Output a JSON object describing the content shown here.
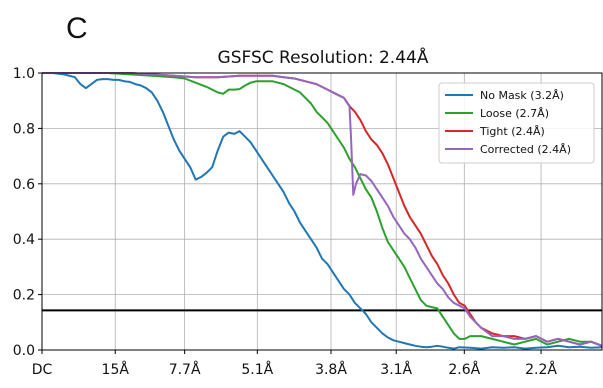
{
  "panel_label": "C",
  "chart_data": {
    "type": "line",
    "title": "GSFSC Resolution: 2.44Å",
    "xlabel": "",
    "ylabel": "",
    "x_tick_labels": [
      "DC",
      "15Å",
      "7.7Å",
      "5.1Å",
      "3.8Å",
      "3.1Å",
      "2.6Å",
      "2.2Å"
    ],
    "x_tick_values": [
      0.0,
      0.0667,
      0.1299,
      0.1961,
      0.2632,
      0.3226,
      0.3846,
      0.4545
    ],
    "xlim": [
      0.0,
      0.51
    ],
    "ylim": [
      0.0,
      1.0
    ],
    "y_ticks": [
      "0.0",
      "0.2",
      "0.4",
      "0.6",
      "0.8",
      "1.0"
    ],
    "y_tick_values": [
      0.0,
      0.2,
      0.4,
      0.6,
      0.8,
      1.0
    ],
    "grid": true,
    "legend_position": "top-right",
    "threshold": 0.143,
    "series": [
      {
        "name": "No Mask (3.2Å)",
        "color": "#1f77b4",
        "x": [
          0.0,
          0.01,
          0.02,
          0.03,
          0.035,
          0.04,
          0.045,
          0.05,
          0.055,
          0.06,
          0.065,
          0.07,
          0.075,
          0.08,
          0.085,
          0.09,
          0.095,
          0.1,
          0.105,
          0.11,
          0.115,
          0.12,
          0.125,
          0.13,
          0.135,
          0.14,
          0.145,
          0.15,
          0.155,
          0.16,
          0.165,
          0.17,
          0.175,
          0.18,
          0.185,
          0.19,
          0.195,
          0.2,
          0.205,
          0.21,
          0.215,
          0.22,
          0.225,
          0.23,
          0.235,
          0.24,
          0.245,
          0.25,
          0.255,
          0.26,
          0.265,
          0.27,
          0.275,
          0.28,
          0.285,
          0.29,
          0.295,
          0.3,
          0.305,
          0.31,
          0.315,
          0.32,
          0.325,
          0.33,
          0.335,
          0.34,
          0.345,
          0.35,
          0.355,
          0.36,
          0.365,
          0.37,
          0.375,
          0.38,
          0.39,
          0.4,
          0.41,
          0.42,
          0.43,
          0.44,
          0.45,
          0.46,
          0.47,
          0.48,
          0.49,
          0.5,
          0.51
        ],
        "y": [
          1.0,
          1.0,
          0.995,
          0.985,
          0.96,
          0.945,
          0.96,
          0.975,
          0.978,
          0.978,
          0.975,
          0.975,
          0.97,
          0.968,
          0.96,
          0.955,
          0.945,
          0.93,
          0.9,
          0.86,
          0.81,
          0.76,
          0.72,
          0.69,
          0.66,
          0.615,
          0.625,
          0.64,
          0.66,
          0.72,
          0.77,
          0.785,
          0.78,
          0.79,
          0.77,
          0.75,
          0.72,
          0.69,
          0.66,
          0.63,
          0.6,
          0.57,
          0.53,
          0.5,
          0.46,
          0.43,
          0.4,
          0.37,
          0.33,
          0.31,
          0.28,
          0.25,
          0.22,
          0.2,
          0.17,
          0.15,
          0.13,
          0.1,
          0.08,
          0.06,
          0.045,
          0.035,
          0.03,
          0.025,
          0.02,
          0.015,
          0.012,
          0.01,
          0.012,
          0.015,
          0.012,
          0.008,
          0.005,
          0.01,
          0.008,
          0.005,
          0.01,
          0.008,
          0.01,
          0.005,
          0.008,
          0.01,
          0.015,
          0.01,
          0.012,
          0.008,
          0.01
        ]
      },
      {
        "name": "Loose (2.7Å)",
        "color": "#2ca02c",
        "x": [
          0.0,
          0.02,
          0.04,
          0.06,
          0.08,
          0.1,
          0.12,
          0.13,
          0.14,
          0.15,
          0.155,
          0.16,
          0.165,
          0.17,
          0.175,
          0.18,
          0.185,
          0.19,
          0.195,
          0.2,
          0.205,
          0.21,
          0.215,
          0.22,
          0.225,
          0.23,
          0.235,
          0.24,
          0.245,
          0.25,
          0.255,
          0.26,
          0.265,
          0.27,
          0.275,
          0.28,
          0.285,
          0.29,
          0.295,
          0.3,
          0.305,
          0.31,
          0.315,
          0.32,
          0.325,
          0.33,
          0.335,
          0.34,
          0.345,
          0.35,
          0.355,
          0.36,
          0.365,
          0.37,
          0.375,
          0.38,
          0.385,
          0.39,
          0.395,
          0.4,
          0.41,
          0.42,
          0.43,
          0.44,
          0.45,
          0.46,
          0.47,
          0.48,
          0.49,
          0.5,
          0.51
        ],
        "y": [
          1.0,
          1.0,
          1.0,
          1.0,
          0.995,
          0.99,
          0.985,
          0.98,
          0.965,
          0.95,
          0.94,
          0.93,
          0.925,
          0.94,
          0.94,
          0.942,
          0.955,
          0.965,
          0.97,
          0.97,
          0.97,
          0.97,
          0.965,
          0.96,
          0.95,
          0.94,
          0.93,
          0.91,
          0.89,
          0.86,
          0.84,
          0.82,
          0.79,
          0.76,
          0.73,
          0.69,
          0.66,
          0.62,
          0.58,
          0.55,
          0.5,
          0.44,
          0.39,
          0.36,
          0.33,
          0.3,
          0.26,
          0.22,
          0.18,
          0.16,
          0.155,
          0.15,
          0.12,
          0.09,
          0.06,
          0.04,
          0.04,
          0.05,
          0.05,
          0.05,
          0.04,
          0.03,
          0.02,
          0.03,
          0.04,
          0.02,
          0.03,
          0.04,
          0.03,
          0.03,
          0.015
        ]
      },
      {
        "name": "Tight (2.4Å)",
        "color": "#d62728",
        "x": [
          0.0,
          0.02,
          0.04,
          0.06,
          0.08,
          0.1,
          0.12,
          0.14,
          0.16,
          0.18,
          0.2,
          0.21,
          0.22,
          0.23,
          0.24,
          0.25,
          0.26,
          0.27,
          0.275,
          0.28,
          0.285,
          0.29,
          0.295,
          0.3,
          0.305,
          0.31,
          0.315,
          0.32,
          0.325,
          0.33,
          0.335,
          0.34,
          0.345,
          0.35,
          0.355,
          0.36,
          0.365,
          0.37,
          0.375,
          0.38,
          0.385,
          0.39,
          0.395,
          0.4,
          0.41,
          0.42,
          0.43,
          0.44,
          0.45,
          0.46,
          0.47,
          0.48,
          0.49,
          0.5,
          0.51
        ],
        "y": [
          1.0,
          1.0,
          1.0,
          1.0,
          1.0,
          0.995,
          0.99,
          0.985,
          0.985,
          0.99,
          0.99,
          0.99,
          0.985,
          0.98,
          0.97,
          0.96,
          0.94,
          0.92,
          0.91,
          0.88,
          0.86,
          0.83,
          0.79,
          0.76,
          0.74,
          0.71,
          0.67,
          0.62,
          0.57,
          0.52,
          0.48,
          0.45,
          0.42,
          0.38,
          0.34,
          0.31,
          0.27,
          0.24,
          0.2,
          0.17,
          0.16,
          0.13,
          0.1,
          0.08,
          0.06,
          0.05,
          0.05,
          0.04,
          0.05,
          0.03,
          0.04,
          0.03,
          0.02,
          0.03,
          0.015
        ]
      },
      {
        "name": "Corrected (2.4Å)",
        "color": "#9467bd",
        "x": [
          0.0,
          0.02,
          0.04,
          0.06,
          0.08,
          0.1,
          0.12,
          0.14,
          0.16,
          0.18,
          0.2,
          0.21,
          0.22,
          0.23,
          0.24,
          0.25,
          0.26,
          0.27,
          0.275,
          0.28,
          0.2815,
          0.2835,
          0.286,
          0.29,
          0.295,
          0.3,
          0.305,
          0.31,
          0.315,
          0.32,
          0.325,
          0.33,
          0.335,
          0.34,
          0.345,
          0.35,
          0.355,
          0.36,
          0.365,
          0.37,
          0.375,
          0.38,
          0.385,
          0.39,
          0.395,
          0.4,
          0.41,
          0.42,
          0.43,
          0.44,
          0.45,
          0.46,
          0.47,
          0.48,
          0.49,
          0.5,
          0.51
        ],
        "y": [
          1.0,
          1.0,
          1.0,
          1.0,
          1.0,
          0.995,
          0.99,
          0.985,
          0.985,
          0.99,
          0.99,
          0.99,
          0.985,
          0.98,
          0.97,
          0.96,
          0.94,
          0.92,
          0.91,
          0.88,
          0.76,
          0.56,
          0.6,
          0.635,
          0.63,
          0.61,
          0.58,
          0.55,
          0.52,
          0.48,
          0.45,
          0.42,
          0.4,
          0.37,
          0.33,
          0.3,
          0.27,
          0.24,
          0.22,
          0.19,
          0.17,
          0.16,
          0.15,
          0.12,
          0.1,
          0.08,
          0.05,
          0.05,
          0.04,
          0.04,
          0.05,
          0.03,
          0.04,
          0.03,
          0.02,
          0.03,
          0.015
        ]
      }
    ]
  }
}
